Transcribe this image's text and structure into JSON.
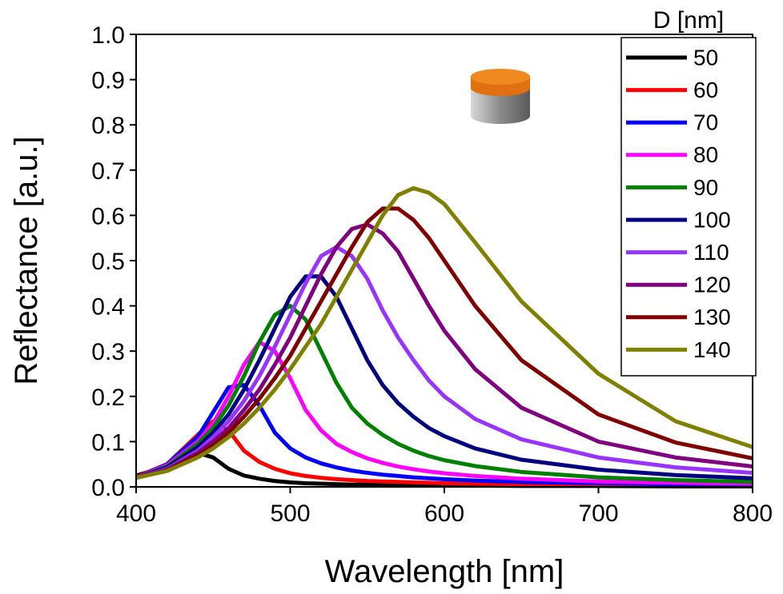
{
  "chart_data": {
    "type": "line",
    "x_label": "Wavelength [nm]",
    "y_label": "Reflectance [a.u.]",
    "legend_title": "D [nm]",
    "legend_position": "upper right",
    "xlim": [
      400,
      800
    ],
    "ylim": [
      0,
      1.0
    ],
    "xticks": [
      400,
      500,
      600,
      700,
      800
    ],
    "yticks": [
      {
        "value": 0,
        "label": "0.0"
      },
      {
        "value": 0.1,
        "label": "0.1"
      },
      {
        "value": 0.2,
        "label": "0.2"
      },
      {
        "value": 0.3,
        "label": "0.3"
      },
      {
        "value": 0.4,
        "label": "0.4"
      },
      {
        "value": 0.5,
        "label": "0.5"
      },
      {
        "value": 0.6,
        "label": "0.6"
      },
      {
        "value": 0.7,
        "label": "0.7"
      },
      {
        "value": 0.8,
        "label": "0.8"
      },
      {
        "value": 0.9,
        "label": "0.9"
      },
      {
        "value": 1.0,
        "label": "1.0"
      }
    ],
    "x": [
      400,
      420,
      440,
      450,
      460,
      470,
      480,
      490,
      500,
      510,
      520,
      530,
      540,
      550,
      560,
      570,
      580,
      590,
      600,
      620,
      650,
      700,
      750,
      800
    ],
    "series": [
      {
        "name": "50",
        "color": "#000000",
        "values": [
          0.025,
          0.045,
          0.075,
          0.065,
          0.04,
          0.025,
          0.018,
          0.013,
          0.01,
          0.008,
          0.007,
          0.006,
          0.005,
          0.005,
          0.004,
          0.004,
          0.004,
          0.003,
          0.003,
          0.003,
          0.002,
          0.002,
          0.001,
          0.001
        ]
      },
      {
        "name": "60",
        "color": "#ff0000",
        "values": [
          0.022,
          0.05,
          0.115,
          0.145,
          0.125,
          0.08,
          0.055,
          0.04,
          0.03,
          0.024,
          0.02,
          0.017,
          0.015,
          0.013,
          0.012,
          0.011,
          0.01,
          0.009,
          0.008,
          0.007,
          0.006,
          0.005,
          0.004,
          0.003
        ]
      },
      {
        "name": "70",
        "color": "#0000ff",
        "values": [
          0.02,
          0.05,
          0.11,
          0.165,
          0.22,
          0.225,
          0.18,
          0.12,
          0.085,
          0.065,
          0.052,
          0.043,
          0.036,
          0.031,
          0.027,
          0.024,
          0.021,
          0.019,
          0.017,
          0.014,
          0.011,
          0.008,
          0.006,
          0.005
        ]
      },
      {
        "name": "80",
        "color": "#ff00ff",
        "values": [
          0.02,
          0.048,
          0.1,
          0.14,
          0.2,
          0.27,
          0.32,
          0.3,
          0.24,
          0.17,
          0.125,
          0.095,
          0.077,
          0.063,
          0.053,
          0.045,
          0.039,
          0.034,
          0.03,
          0.024,
          0.018,
          0.012,
          0.009,
          0.007
        ]
      },
      {
        "name": "90",
        "color": "#008000",
        "values": [
          0.02,
          0.045,
          0.095,
          0.13,
          0.18,
          0.245,
          0.32,
          0.38,
          0.4,
          0.37,
          0.3,
          0.23,
          0.175,
          0.14,
          0.115,
          0.095,
          0.08,
          0.068,
          0.059,
          0.046,
          0.033,
          0.021,
          0.015,
          0.011
        ]
      },
      {
        "name": "100",
        "color": "#000080",
        "values": [
          0.02,
          0.043,
          0.088,
          0.12,
          0.16,
          0.215,
          0.28,
          0.35,
          0.42,
          0.465,
          0.465,
          0.42,
          0.35,
          0.28,
          0.225,
          0.185,
          0.155,
          0.13,
          0.112,
          0.085,
          0.06,
          0.038,
          0.026,
          0.019
        ]
      },
      {
        "name": "110",
        "color": "#9933ff",
        "values": [
          0.02,
          0.04,
          0.08,
          0.11,
          0.145,
          0.19,
          0.245,
          0.31,
          0.38,
          0.45,
          0.51,
          0.53,
          0.51,
          0.46,
          0.39,
          0.33,
          0.28,
          0.235,
          0.2,
          0.15,
          0.105,
          0.065,
          0.043,
          0.031
        ]
      },
      {
        "name": "120",
        "color": "#800080",
        "values": [
          0.02,
          0.038,
          0.075,
          0.1,
          0.13,
          0.17,
          0.215,
          0.27,
          0.33,
          0.4,
          0.47,
          0.53,
          0.57,
          0.58,
          0.56,
          0.52,
          0.46,
          0.4,
          0.345,
          0.26,
          0.175,
          0.1,
          0.065,
          0.045
        ]
      },
      {
        "name": "130",
        "color": "#800000",
        "values": [
          0.02,
          0.036,
          0.07,
          0.092,
          0.12,
          0.155,
          0.195,
          0.24,
          0.29,
          0.35,
          0.41,
          0.47,
          0.53,
          0.585,
          0.615,
          0.615,
          0.59,
          0.55,
          0.5,
          0.4,
          0.28,
          0.16,
          0.098,
          0.063
        ]
      },
      {
        "name": "140",
        "color": "#808000",
        "values": [
          0.02,
          0.035,
          0.065,
          0.085,
          0.11,
          0.14,
          0.175,
          0.215,
          0.26,
          0.31,
          0.36,
          0.42,
          0.48,
          0.54,
          0.6,
          0.645,
          0.66,
          0.65,
          0.625,
          0.54,
          0.41,
          0.25,
          0.145,
          0.088
        ]
      }
    ]
  }
}
